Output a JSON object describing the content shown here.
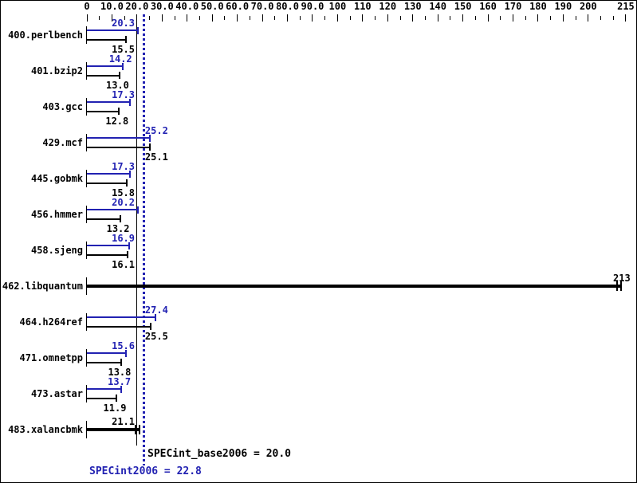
{
  "colors": {
    "peak_blue": "#2222b2",
    "base_black": "#000000",
    "background": "#ffffff"
  },
  "chart_data": {
    "type": "bar",
    "orientation": "horizontal",
    "x_axis": {
      "min": 0,
      "max": 215,
      "major_tick_values": [
        0,
        10,
        20,
        30,
        40,
        50,
        60,
        70,
        80,
        90,
        100,
        110,
        120,
        130,
        140,
        150,
        160,
        170,
        180,
        190,
        200,
        215
      ],
      "major_tick_labels": [
        "0",
        "10.0",
        "20.0",
        "30.0",
        "40.0",
        "50.0",
        "60.0",
        "70.0",
        "80.0",
        "90.0",
        "100",
        "110",
        "120",
        "130",
        "140",
        "150",
        "160",
        "170",
        "180",
        "190",
        "200",
        "215"
      ],
      "minor_tick_step": 5
    },
    "series_names": {
      "peak": "SPECint2006 (blue)",
      "base": "SPECint_base2006 (black)"
    },
    "benchmarks": [
      {
        "name": "400.perlbench",
        "peak": 20.3,
        "base": 15.5,
        "peak_label": "20.3",
        "base_label": "15.5",
        "single_bar": false
      },
      {
        "name": "401.bzip2",
        "peak": 14.2,
        "base": 13.0,
        "peak_label": "14.2",
        "base_label": "13.0",
        "single_bar": false
      },
      {
        "name": "403.gcc",
        "peak": 17.3,
        "base": 12.8,
        "peak_label": "17.3",
        "base_label": "12.8",
        "single_bar": false
      },
      {
        "name": "429.mcf",
        "peak": 25.2,
        "base": 25.1,
        "peak_label": "25.2",
        "base_label": "25.1",
        "single_bar": false
      },
      {
        "name": "445.gobmk",
        "peak": 17.3,
        "base": 15.8,
        "peak_label": "17.3",
        "base_label": "15.8",
        "single_bar": false
      },
      {
        "name": "456.hmmer",
        "peak": 20.2,
        "base": 13.2,
        "peak_label": "20.2",
        "base_label": "13.2",
        "single_bar": false
      },
      {
        "name": "458.sjeng",
        "peak": 16.9,
        "base": 16.1,
        "peak_label": "16.9",
        "base_label": "16.1",
        "single_bar": false
      },
      {
        "name": "462.libquantum",
        "peak": 213,
        "base": 213,
        "peak_label": "213",
        "base_label": "213",
        "single_bar": true
      },
      {
        "name": "464.h264ref",
        "peak": 27.4,
        "base": 25.5,
        "peak_label": "27.4",
        "base_label": "25.5",
        "single_bar": false
      },
      {
        "name": "471.omnetpp",
        "peak": 15.6,
        "base": 13.8,
        "peak_label": "15.6",
        "base_label": "13.8",
        "single_bar": false
      },
      {
        "name": "473.astar",
        "peak": 13.7,
        "base": 11.9,
        "peak_label": "13.7",
        "base_label": "11.9",
        "single_bar": false
      },
      {
        "name": "483.xalancbmk",
        "peak": 21.1,
        "base": 21.1,
        "peak_label": "21.1",
        "base_label": "21.1",
        "single_bar": true
      }
    ],
    "reference_lines": [
      {
        "label": "SPECint_base2006 = 20.0",
        "value": 20.0,
        "style": "solid",
        "series": "base"
      },
      {
        "label": "SPECint2006 = 22.8",
        "value": 22.8,
        "style": "dotted",
        "series": "peak"
      }
    ]
  }
}
